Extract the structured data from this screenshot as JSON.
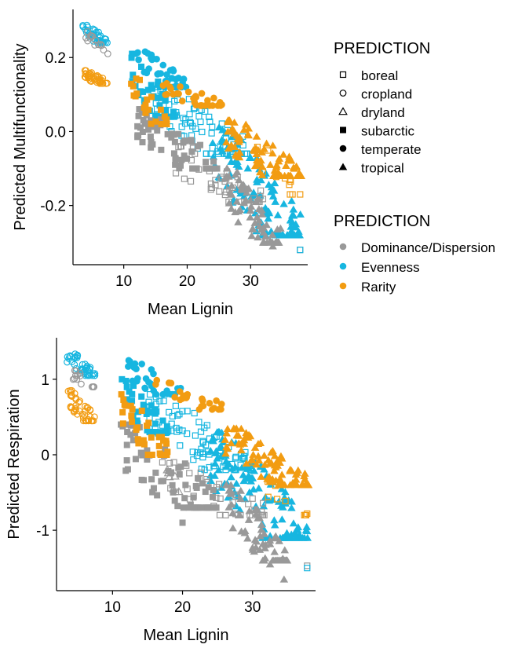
{
  "colors": {
    "Dominance/Dispersion": "#999999",
    "Evenness": "#17b6e0",
    "Rarity": "#f29c12",
    "axis": "#000000"
  },
  "legend_shape": {
    "title": "PREDICTION",
    "items": [
      {
        "label": "boreal",
        "shape": "square-open"
      },
      {
        "label": "cropland",
        "shape": "circle-open"
      },
      {
        "label": "dryland",
        "shape": "triangle-open"
      },
      {
        "label": "subarctic",
        "shape": "square-filled"
      },
      {
        "label": "temperate",
        "shape": "circle-filled"
      },
      {
        "label": "tropical",
        "shape": "triangle-filled"
      }
    ]
  },
  "legend_color": {
    "title": "PREDICTION",
    "items": [
      {
        "label": "Dominance/Dispersion",
        "color": "#999999"
      },
      {
        "label": "Evenness",
        "color": "#17b6e0"
      },
      {
        "label": "Rarity",
        "color": "#f29c12"
      }
    ]
  },
  "chart_data": [
    {
      "type": "scatter",
      "title": "",
      "xlabel": "Mean Lignin",
      "ylabel": "Predicted Multifunctionality",
      "xlim": [
        2,
        39
      ],
      "ylim": [
        -0.36,
        0.33
      ],
      "xticks": [
        "10",
        "20",
        "30"
      ],
      "xtick_values": [
        10,
        20,
        30
      ],
      "yticks": [
        "0.2",
        "0.0",
        "-0.2"
      ],
      "ytick_values": [
        0.2,
        0.0,
        -0.2
      ],
      "grid": false,
      "clusters": [
        {
          "series": "Evenness",
          "shape": "circle-open",
          "x": [
            3.5,
            7.5
          ],
          "y": [
            0.24,
            0.29
          ],
          "n": 45
        },
        {
          "series": "Dominance/Dispersion",
          "shape": "circle-open",
          "x": [
            4,
            7.5
          ],
          "y": [
            0.21,
            0.27
          ],
          "n": 14
        },
        {
          "series": "Rarity",
          "shape": "circle-open",
          "x": [
            3.5,
            7.5
          ],
          "y": [
            0.13,
            0.165
          ],
          "n": 40
        },
        {
          "series": "Evenness",
          "shape": "circle-filled",
          "x": [
            12,
            20
          ],
          "y": [
            0.12,
            0.22
          ],
          "n": 35
        },
        {
          "series": "Evenness",
          "shape": "square-filled",
          "x": [
            11,
            18
          ],
          "y": [
            0.04,
            0.21
          ],
          "n": 40
        },
        {
          "series": "Evenness",
          "shape": "square-open",
          "x": [
            15,
            30
          ],
          "y": [
            -0.06,
            0.12
          ],
          "n": 75
        },
        {
          "series": "Evenness",
          "shape": "triangle-filled",
          "x": [
            24,
            38
          ],
          "y": [
            -0.28,
            0.02
          ],
          "n": 120
        },
        {
          "series": "Dominance/Dispersion",
          "shape": "square-filled",
          "x": [
            12,
            25
          ],
          "y": [
            -0.1,
            0.06
          ],
          "n": 70
        },
        {
          "series": "Dominance/Dispersion",
          "shape": "square-open",
          "x": [
            18,
            32
          ],
          "y": [
            -0.19,
            -0.04
          ],
          "n": 40
        },
        {
          "series": "Dominance/Dispersion",
          "shape": "triangle-filled",
          "x": [
            26,
            35
          ],
          "y": [
            -0.3,
            -0.1
          ],
          "n": 70
        },
        {
          "series": "Rarity",
          "shape": "square-filled",
          "x": [
            11,
            17
          ],
          "y": [
            0.02,
            0.15
          ],
          "n": 25
        },
        {
          "series": "Rarity",
          "shape": "circle-filled",
          "x": [
            16,
            26
          ],
          "y": [
            0.07,
            0.13
          ],
          "n": 30
        },
        {
          "series": "Rarity",
          "shape": "triangle-filled",
          "x": [
            26,
            38
          ],
          "y": [
            -0.12,
            0.03
          ],
          "n": 90
        },
        {
          "series": "Rarity",
          "shape": "square-open",
          "x": [
            30,
            38
          ],
          "y": [
            -0.17,
            -0.02
          ],
          "n": 10
        }
      ],
      "points": [
        {
          "series": "Dominance/Dispersion",
          "shape": "square-open",
          "x": 37.8,
          "y": -0.32
        },
        {
          "series": "Evenness",
          "shape": "square-open",
          "x": 37.8,
          "y": -0.32
        },
        {
          "series": "Rarity",
          "shape": "square-open",
          "x": 37.8,
          "y": -0.17
        },
        {
          "series": "Dominance/Dispersion",
          "shape": "triangle-filled",
          "x": 33.5,
          "y": -0.31
        }
      ]
    },
    {
      "type": "scatter",
      "title": "",
      "xlabel": "Mean Lignin",
      "ylabel": "Predicted Respiration",
      "xlim": [
        2,
        39
      ],
      "ylim": [
        -1.8,
        1.55
      ],
      "xticks": [
        "10",
        "20",
        "30"
      ],
      "xtick_values": [
        10,
        20,
        30
      ],
      "yticks": [
        "1",
        "0",
        "-1"
      ],
      "ytick_values": [
        1,
        0,
        -1
      ],
      "grid": false,
      "clusters": [
        {
          "series": "Evenness",
          "shape": "circle-open",
          "x": [
            3.5,
            7.5
          ],
          "y": [
            1.05,
            1.4
          ],
          "n": 45
        },
        {
          "series": "Dominance/Dispersion",
          "shape": "circle-open",
          "x": [
            4,
            7.5
          ],
          "y": [
            0.9,
            1.15
          ],
          "n": 14
        },
        {
          "series": "Rarity",
          "shape": "circle-open",
          "x": [
            3.5,
            7.5
          ],
          "y": [
            0.45,
            0.85
          ],
          "n": 45
        },
        {
          "series": "Evenness",
          "shape": "circle-filled",
          "x": [
            12,
            20
          ],
          "y": [
            0.8,
            1.25
          ],
          "n": 30
        },
        {
          "series": "Evenness",
          "shape": "square-filled",
          "x": [
            11,
            18
          ],
          "y": [
            0.3,
            1.0
          ],
          "n": 40
        },
        {
          "series": "Evenness",
          "shape": "square-open",
          "x": [
            15,
            30
          ],
          "y": [
            -0.2,
            0.8
          ],
          "n": 80
        },
        {
          "series": "Evenness",
          "shape": "triangle-filled",
          "x": [
            24,
            38
          ],
          "y": [
            -1.1,
            0.3
          ],
          "n": 120
        },
        {
          "series": "Dominance/Dispersion",
          "shape": "square-filled",
          "x": [
            11,
            25
          ],
          "y": [
            -0.7,
            0.4
          ],
          "n": 70
        },
        {
          "series": "Dominance/Dispersion",
          "shape": "square-open",
          "x": [
            17,
            32
          ],
          "y": [
            -0.8,
            -0.1
          ],
          "n": 40
        },
        {
          "series": "Dominance/Dispersion",
          "shape": "triangle-open",
          "x": [
            17,
            22
          ],
          "y": [
            -0.6,
            -0.2
          ],
          "n": 6
        },
        {
          "series": "Dominance/Dispersion",
          "shape": "triangle-filled",
          "x": [
            26,
            35
          ],
          "y": [
            -1.4,
            -0.4
          ],
          "n": 70
        },
        {
          "series": "Rarity",
          "shape": "square-filled",
          "x": [
            11,
            18
          ],
          "y": [
            0.0,
            0.8
          ],
          "n": 35
        },
        {
          "series": "Rarity",
          "shape": "circle-filled",
          "x": [
            16,
            26
          ],
          "y": [
            0.6,
            1.0
          ],
          "n": 25
        },
        {
          "series": "Rarity",
          "shape": "triangle-filled",
          "x": [
            26,
            38
          ],
          "y": [
            -0.4,
            0.35
          ],
          "n": 90
        },
        {
          "series": "Rarity",
          "shape": "square-open",
          "x": [
            30,
            38
          ],
          "y": [
            -0.8,
            0.1
          ],
          "n": 10
        }
      ],
      "points": [
        {
          "series": "Dominance/Dispersion",
          "shape": "square-open",
          "x": 37.8,
          "y": -1.47
        },
        {
          "series": "Evenness",
          "shape": "square-open",
          "x": 37.8,
          "y": -1.5
        },
        {
          "series": "Rarity",
          "shape": "square-open",
          "x": 37.8,
          "y": -0.78
        },
        {
          "series": "Dominance/Dispersion",
          "shape": "triangle-filled",
          "x": 34.5,
          "y": -1.65
        },
        {
          "series": "Dominance/Dispersion",
          "shape": "triangle-filled",
          "x": 32.5,
          "y": -1.45
        },
        {
          "series": "Dominance/Dispersion",
          "shape": "square-filled",
          "x": 20,
          "y": -0.9
        }
      ]
    }
  ]
}
